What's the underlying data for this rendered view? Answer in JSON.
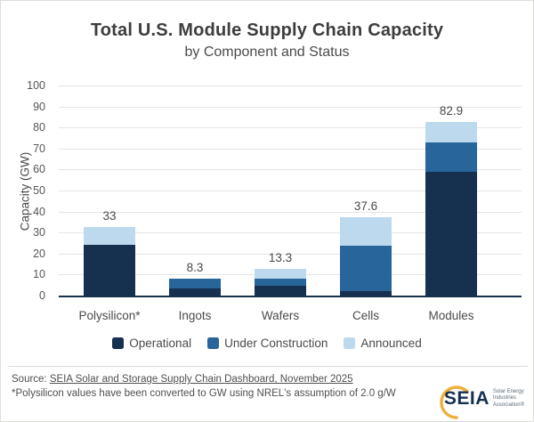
{
  "title": "Total U.S. Module Supply Chain Capacity",
  "subtitle": "by Component and Status",
  "chart_data": {
    "type": "bar",
    "stacked": true,
    "title": "Total U.S. Module Supply Chain Capacity",
    "subtitle": "by Component and Status",
    "ylabel": "Capacity (GW)",
    "ylim": [
      0,
      100
    ],
    "ytick_step": 10,
    "grid": true,
    "legend_position": "bottom",
    "categories": [
      "Polysilicon*",
      "Ingots",
      "Wafers",
      "Cells",
      "Modules"
    ],
    "series": [
      {
        "name": "Operational",
        "color": "#16304f",
        "values": [
          24.5,
          4.0,
          5.2,
          2.5,
          59.5
        ]
      },
      {
        "name": "Under Construction",
        "color": "#27659b",
        "values": [
          0,
          4.3,
          3.1,
          21.7,
          14.0
        ]
      },
      {
        "name": "Announced",
        "color": "#bcd9ee",
        "values": [
          8.5,
          0,
          5.0,
          13.4,
          9.4
        ]
      }
    ],
    "totals": [
      "33",
      "8.3",
      "13.3",
      "37.6",
      "82.9"
    ]
  },
  "footer": {
    "source_prefix": "Source: ",
    "source_link": "SEIA Solar and Storage Supply Chain Dashboard, November 2025",
    "footnote": "*Polysilicon values have been converted to GW using NREL's assumption of 2.0 g/W",
    "logo": {
      "text": "SEIA",
      "tagline1": "Solar Energy",
      "tagline2": "Industries",
      "tagline3": "Association®"
    }
  }
}
